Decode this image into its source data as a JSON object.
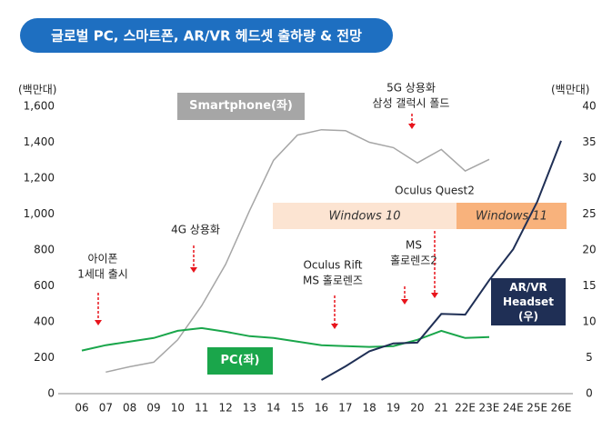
{
  "chart_data": {
    "type": "line",
    "title": "글로벌 PC, 스마트폰, AR/VR 헤드셋 출하량 & 전망",
    "ylabel": "(백만대)",
    "y2label": "(백만대)",
    "categories": [
      "06",
      "07",
      "08",
      "09",
      "10",
      "11",
      "12",
      "13",
      "14",
      "15",
      "16",
      "17",
      "18",
      "19",
      "20",
      "21",
      "22E",
      "23E",
      "24E",
      "25E",
      "26E"
    ],
    "series": [
      {
        "name": "Smartphone(좌)",
        "color": "#a6a6a6",
        "axis": "y",
        "values": [
          null,
          120,
          150,
          175,
          300,
          490,
          720,
          1020,
          1300,
          1440,
          1470,
          1465,
          1400,
          1370,
          1285,
          1360,
          1240,
          1305,
          null,
          null,
          null
        ]
      },
      {
        "name": "PC(좌)",
        "color": "#1aa64b",
        "axis": "y",
        "values": [
          240,
          270,
          290,
          310,
          350,
          365,
          345,
          320,
          310,
          290,
          270,
          265,
          260,
          265,
          300,
          350,
          310,
          315,
          null,
          null,
          null
        ]
      },
      {
        "name": "AR/VR Headset (우)",
        "color": "#1f2f55",
        "axis": "y2",
        "values": [
          null,
          null,
          null,
          null,
          null,
          null,
          null,
          null,
          null,
          null,
          1.9,
          3.8,
          5.9,
          7.0,
          7.1,
          11.1,
          11.0,
          15.8,
          20.1,
          26.7,
          35.2
        ]
      }
    ],
    "ylim": [
      0,
      1600
    ],
    "yticks": [
      0,
      200,
      400,
      600,
      800,
      {
        "value": 1000,
        "label": "1,000"
      },
      {
        "value": 1200,
        "label": "1,200"
      },
      {
        "value": 1400,
        "label": "1,400"
      },
      {
        "value": 1600,
        "label": "1,600"
      }
    ],
    "y2lim": [
      0,
      40
    ],
    "y2ticks": [
      0,
      5,
      10,
      15,
      20,
      25,
      30,
      35,
      40
    ],
    "periods": [
      "Windows 10",
      "Windows 11"
    ],
    "annotations": [
      {
        "lines": [
          "아이폰",
          "1세대 출시"
        ]
      },
      {
        "lines": [
          "4G 상용화"
        ]
      },
      {
        "lines": [
          "Oculus Rift",
          "MS 홀로렌즈"
        ]
      },
      {
        "lines": [
          "MS",
          "홀로렌즈2"
        ]
      },
      {
        "lines": [
          "5G 상용화",
          "삼성 갤럭시 폴드"
        ]
      },
      {
        "lines": [
          "Oculus Quest2"
        ]
      }
    ]
  }
}
